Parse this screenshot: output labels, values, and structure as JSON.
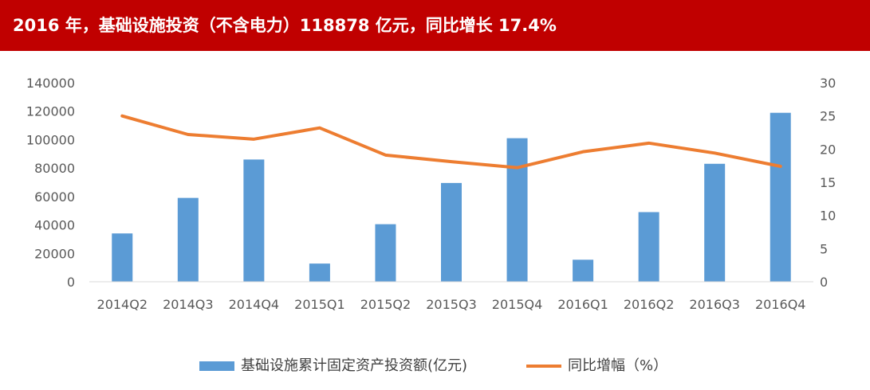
{
  "header": {
    "title": "2016 年，基础设施投资（不含电力）118878 亿元，同比增长 17.4%"
  },
  "colors": {
    "header_bg": "#c00000",
    "bar": "#5b9bd5",
    "line": "#ed7d31",
    "axis_text": "#595959",
    "axis_line": "#d9d9d9"
  },
  "chart_data": {
    "type": "bar",
    "title": "",
    "categories": [
      "2014Q2",
      "2014Q3",
      "2014Q4",
      "2015Q1",
      "2015Q2",
      "2015Q3",
      "2015Q4",
      "2016Q1",
      "2016Q2",
      "2016Q3",
      "2016Q4"
    ],
    "series": [
      {
        "name": "基础设施累计固定资产投资额(亿元)",
        "type": "bar",
        "axis": "left",
        "values": [
          34000,
          59000,
          86000,
          12800,
          40500,
          69500,
          101000,
          15500,
          49000,
          83000,
          118878
        ]
      },
      {
        "name": "同比增幅（%）",
        "type": "line",
        "axis": "right",
        "values": [
          25.0,
          22.2,
          21.5,
          23.2,
          19.1,
          18.1,
          17.2,
          19.6,
          20.9,
          19.4,
          17.4
        ]
      }
    ],
    "left_axis": {
      "ylim": [
        0,
        140000
      ],
      "ticks": [
        "0",
        "20000",
        "40000",
        "60000",
        "80000",
        "100000",
        "120000",
        "140000"
      ]
    },
    "right_axis": {
      "ylim": [
        0,
        30
      ],
      "ticks": [
        "0",
        "5",
        "10",
        "15",
        "20",
        "25",
        "30"
      ]
    },
    "grid": false,
    "legend": "bottom"
  }
}
